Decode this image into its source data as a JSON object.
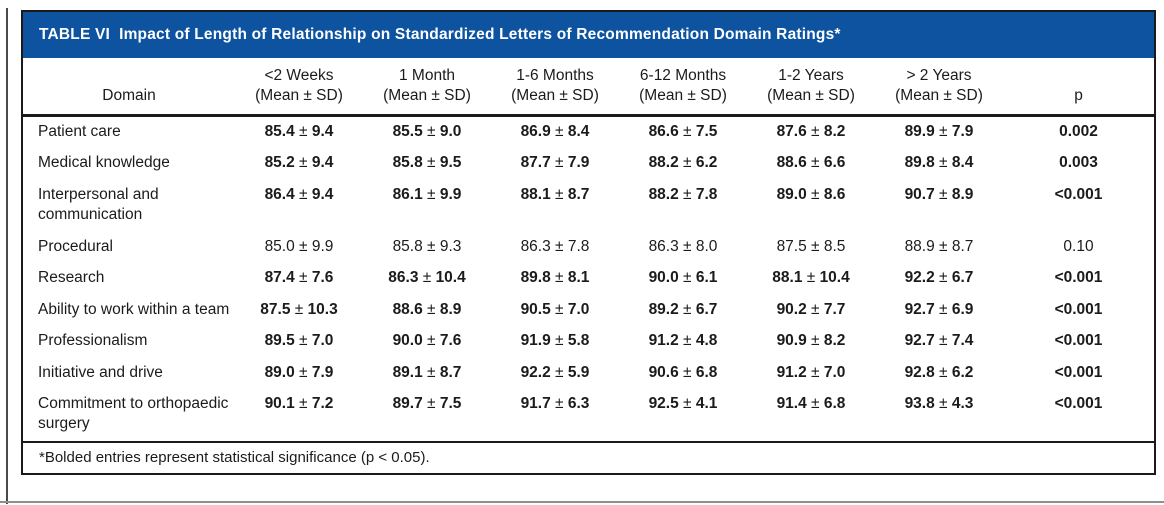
{
  "banner": {
    "label": "TABLE VI",
    "title": "Impact of Length of Relationship on Standardized Letters of Recommendation Domain Ratings*",
    "color": "#0d539f"
  },
  "table": {
    "columns": [
      {
        "lines": [
          "Domain"
        ]
      },
      {
        "lines": [
          "<2 Weeks",
          "(Mean ± SD)"
        ]
      },
      {
        "lines": [
          "1 Month",
          "(Mean ± SD)"
        ]
      },
      {
        "lines": [
          "1-6 Months",
          "(Mean ± SD)"
        ]
      },
      {
        "lines": [
          "6-12 Months",
          "(Mean ± SD)"
        ]
      },
      {
        "lines": [
          "1-2 Years",
          "(Mean ± SD)"
        ]
      },
      {
        "lines": [
          "> 2 Years",
          "(Mean ± SD)"
        ]
      },
      {
        "lines": [
          "p"
        ]
      }
    ],
    "rows": [
      {
        "domain_lines": [
          "Patient care"
        ],
        "values": [
          "85.4 ± 9.4",
          "85.5 ± 9.0",
          "86.9 ± 8.4",
          "86.6 ± 7.5",
          "87.6 ± 8.2",
          "89.9 ± 7.9"
        ],
        "p": "0.002",
        "significant": true
      },
      {
        "domain_lines": [
          "Medical knowledge"
        ],
        "values": [
          "85.2 ± 9.4",
          "85.8 ± 9.5",
          "87.7 ± 7.9",
          "88.2 ± 6.2",
          "88.6 ± 6.6",
          "89.8 ± 8.4"
        ],
        "p": "0.003",
        "significant": true
      },
      {
        "domain_lines": [
          "Interpersonal and",
          "communication"
        ],
        "values": [
          "86.4 ± 9.4",
          "86.1 ± 9.9",
          "88.1 ± 8.7",
          "88.2 ± 7.8",
          "89.0 ± 8.6",
          "90.7 ± 8.9"
        ],
        "p": "<0.001",
        "significant": true
      },
      {
        "domain_lines": [
          "Procedural"
        ],
        "values": [
          "85.0 ± 9.9",
          "85.8 ± 9.3",
          "86.3 ± 7.8",
          "86.3 ± 8.0",
          "87.5 ± 8.5",
          "88.9 ± 8.7"
        ],
        "p": "0.10",
        "significant": false
      },
      {
        "domain_lines": [
          "Research"
        ],
        "values": [
          "87.4 ± 7.6",
          "86.3 ± 10.4",
          "89.8 ± 8.1",
          "90.0 ± 6.1",
          "88.1 ± 10.4",
          "92.2 ± 6.7"
        ],
        "p": "<0.001",
        "significant": true
      },
      {
        "domain_lines": [
          "Ability to work within a team"
        ],
        "values": [
          "87.5 ± 10.3",
          "88.6 ± 8.9",
          "90.5 ± 7.0",
          "89.2 ± 6.7",
          "90.2 ± 7.7",
          "92.7 ± 6.9"
        ],
        "p": "<0.001",
        "significant": true
      },
      {
        "domain_lines": [
          "Professionalism"
        ],
        "values": [
          "89.5 ± 7.0",
          "90.0 ± 7.6",
          "91.9 ± 5.8",
          "91.2 ± 4.8",
          "90.9 ± 8.2",
          "92.7 ± 7.4"
        ],
        "p": "<0.001",
        "significant": true
      },
      {
        "domain_lines": [
          "Initiative and drive"
        ],
        "values": [
          "89.0 ± 7.9",
          "89.1 ± 8.7",
          "92.2 ± 5.9",
          "90.6 ± 6.8",
          "91.2 ± 7.0",
          "92.8 ± 6.2"
        ],
        "p": "<0.001",
        "significant": true
      },
      {
        "domain_lines": [
          "Commitment to orthopaedic",
          "surgery"
        ],
        "values": [
          "90.1 ± 7.2",
          "89.7 ± 7.5",
          "91.7 ± 6.3",
          "92.5 ± 4.1",
          "91.4 ± 6.8",
          "93.8 ± 4.3"
        ],
        "p": "<0.001",
        "significant": true
      }
    ]
  },
  "footnote": "*Bolded entries represent statistical significance (p < 0.05)."
}
